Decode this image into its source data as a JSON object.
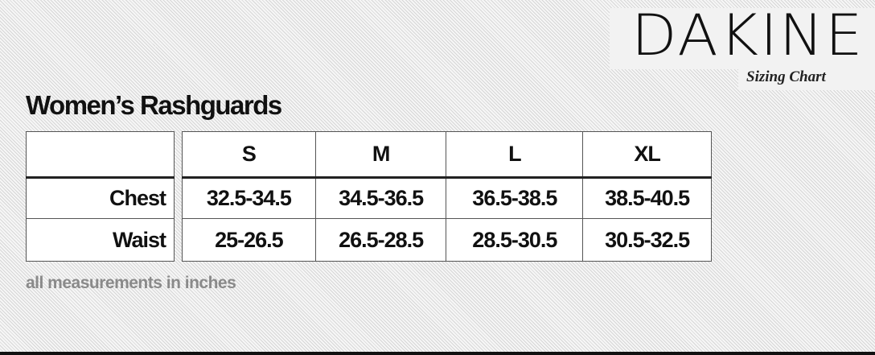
{
  "logo": {
    "brand": "DAKINE",
    "subtitle": "Sizing Chart"
  },
  "title": "Women’s Rashguards",
  "table": {
    "columns": [
      "S",
      "M",
      "L",
      "XL"
    ],
    "rows": [
      {
        "label": "Chest",
        "values": [
          "32.5-34.5",
          "34.5-36.5",
          "36.5-38.5",
          "38.5-40.5"
        ]
      },
      {
        "label": "Waist",
        "values": [
          "25-26.5",
          "26.5-28.5",
          "28.5-30.5",
          "30.5-32.5"
        ]
      }
    ]
  },
  "note": "all measurements in inches"
}
